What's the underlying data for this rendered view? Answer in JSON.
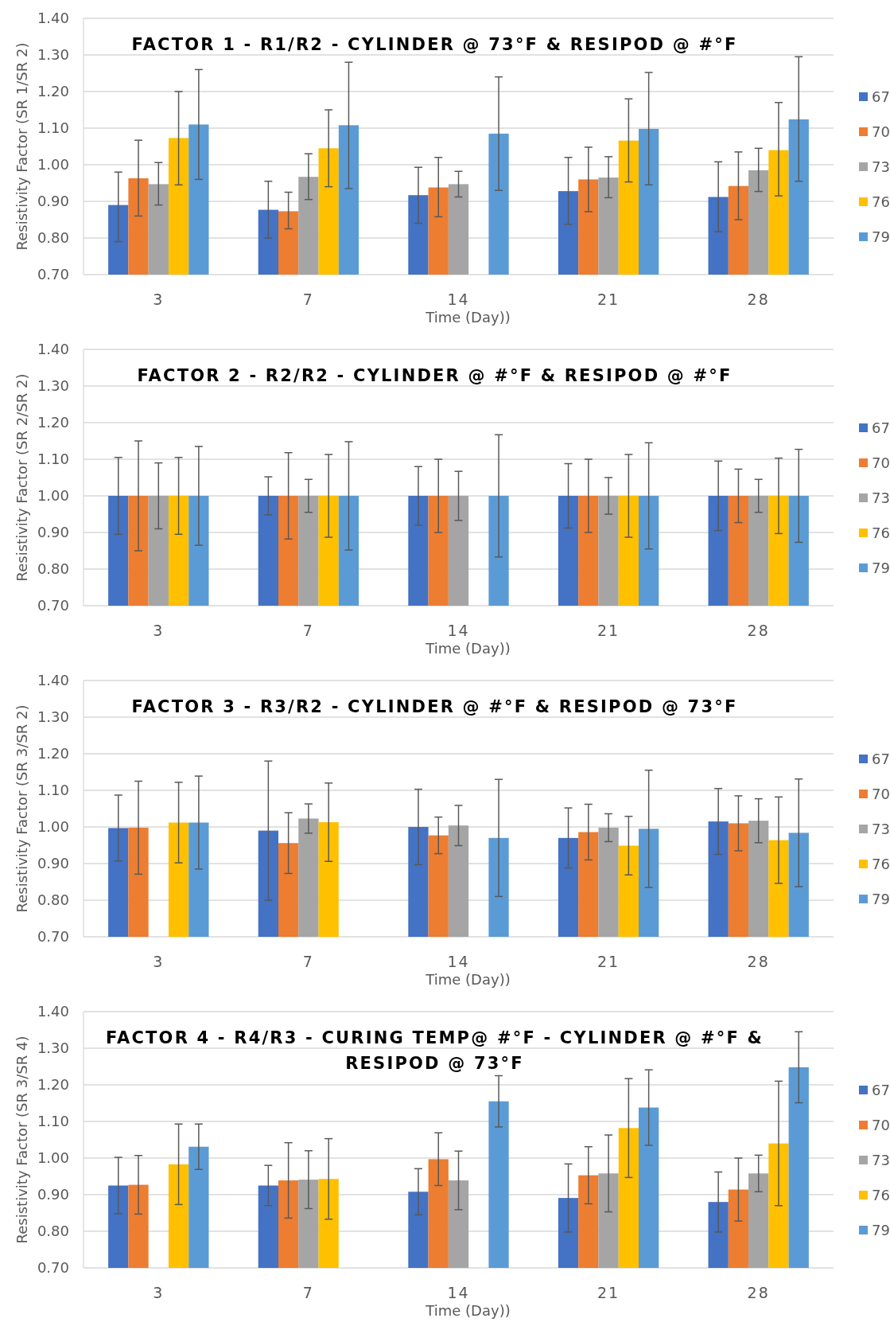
{
  "chart_data": [
    {
      "type": "bar",
      "title": "FACTOR 1 - R1/R2 -  CYLINDER @ 73°F & RESIPOD @ #°F",
      "xlabel": "Time (Day))",
      "ylabel": "Resistivity Factor (SR 1/SR 2)",
      "categories": [
        "3",
        "7",
        "14",
        "21",
        "28"
      ],
      "ylim": [
        0.7,
        1.4
      ],
      "yticks": [
        {
          "value": 0.7,
          "label": "0.70"
        },
        {
          "value": 0.8,
          "label": "0.80"
        },
        {
          "value": 0.9,
          "label": "0.90"
        },
        {
          "value": 1.0,
          "label": "1.00"
        },
        {
          "value": 1.1,
          "label": "1.10"
        },
        {
          "value": 1.2,
          "label": "1.20"
        },
        {
          "value": 1.3,
          "label": "1.30"
        },
        {
          "value": 1.4,
          "label": "1.40"
        }
      ],
      "grid": "y",
      "legend": "right",
      "series": [
        {
          "name": "67",
          "color": "#4472c4",
          "values": [
            0.89,
            0.877,
            0.917,
            0.928,
            0.912
          ],
          "errors": [
            [
              0.79,
              0.98
            ],
            [
              0.8,
              0.955
            ],
            [
              0.84,
              0.993
            ],
            [
              0.837,
              1.02
            ],
            [
              0.817,
              1.008
            ]
          ]
        },
        {
          "name": "70",
          "color": "#ed7d31",
          "values": [
            0.963,
            0.873,
            0.938,
            0.96,
            0.942
          ],
          "errors": [
            [
              0.86,
              1.067
            ],
            [
              0.825,
              0.925
            ],
            [
              0.858,
              1.02
            ],
            [
              0.872,
              1.048
            ],
            [
              0.85,
              1.035
            ]
          ]
        },
        {
          "name": "73",
          "color": "#a5a5a5",
          "values": [
            0.947,
            0.967,
            0.947,
            0.965,
            0.985
          ],
          "errors": [
            [
              0.89,
              1.006
            ],
            [
              0.905,
              1.03
            ],
            [
              0.912,
              0.982
            ],
            [
              0.91,
              1.022
            ],
            [
              0.927,
              1.045
            ]
          ]
        },
        {
          "name": "76",
          "color": "#ffc000",
          "values": [
            1.073,
            1.045,
            null,
            1.066,
            1.04
          ],
          "errors": [
            [
              0.945,
              1.2
            ],
            [
              0.94,
              1.15
            ],
            null,
            [
              0.953,
              1.18
            ],
            [
              0.915,
              1.17
            ]
          ]
        },
        {
          "name": "79",
          "color": "#5b9bd5",
          "values": [
            1.11,
            1.108,
            1.085,
            1.098,
            1.124
          ],
          "errors": [
            [
              0.96,
              1.26
            ],
            [
              0.935,
              1.28
            ],
            [
              0.93,
              1.24
            ],
            [
              0.945,
              1.252
            ],
            [
              0.955,
              1.295
            ]
          ]
        }
      ]
    },
    {
      "type": "bar",
      "title": "FACTOR 2 - R2/R2 -  CYLINDER @ #°F & RESIPOD @ #°F",
      "xlabel": "Time (Day))",
      "ylabel": "Resistivity Factor (SR 2/SR 2)",
      "categories": [
        "3",
        "7",
        "14",
        "21",
        "28"
      ],
      "ylim": [
        0.7,
        1.4
      ],
      "yticks": [
        {
          "value": 0.7,
          "label": "0.70"
        },
        {
          "value": 0.8,
          "label": "0.80"
        },
        {
          "value": 0.9,
          "label": "0.90"
        },
        {
          "value": 1.0,
          "label": "1.00"
        },
        {
          "value": 1.1,
          "label": "1.10"
        },
        {
          "value": 1.2,
          "label": "1.20"
        },
        {
          "value": 1.3,
          "label": "1.30"
        },
        {
          "value": 1.4,
          "label": "1.40"
        }
      ],
      "grid": "y",
      "legend": "right",
      "series": [
        {
          "name": "67",
          "color": "#4472c4",
          "values": [
            1.0,
            1.0,
            1.0,
            1.0,
            1.0
          ],
          "errors": [
            0.105,
            0.052,
            0.08,
            0.088,
            0.095
          ]
        },
        {
          "name": "70",
          "color": "#ed7d31",
          "values": [
            1.0,
            1.0,
            1.0,
            1.0,
            1.0
          ],
          "errors": [
            0.15,
            0.118,
            0.1,
            0.1,
            0.073
          ]
        },
        {
          "name": "73",
          "color": "#a5a5a5",
          "values": [
            1.0,
            1.0,
            1.0,
            1.0,
            1.0
          ],
          "errors": [
            0.09,
            0.045,
            0.067,
            0.05,
            0.045
          ]
        },
        {
          "name": "76",
          "color": "#ffc000",
          "values": [
            1.0,
            1.0,
            null,
            1.0,
            1.0
          ],
          "errors": [
            0.105,
            0.113,
            null,
            0.113,
            0.103
          ]
        },
        {
          "name": "79",
          "color": "#5b9bd5",
          "values": [
            1.0,
            1.0,
            1.0,
            1.0,
            1.0
          ],
          "errors": [
            0.135,
            0.148,
            0.167,
            0.145,
            0.127
          ]
        }
      ]
    },
    {
      "type": "bar",
      "title": "FACTOR 3 - R3/R2 -  CYLINDER @ #°F & RESIPOD @ 73°F",
      "xlabel": "Time (Day))",
      "ylabel": "Resistivity Factor (SR 3/SR 2)",
      "categories": [
        "3",
        "7",
        "14",
        "21",
        "28"
      ],
      "ylim": [
        0.7,
        1.4
      ],
      "yticks": [
        {
          "value": 0.7,
          "label": "0.70"
        },
        {
          "value": 0.8,
          "label": "0.80"
        },
        {
          "value": 0.9,
          "label": "0.90"
        },
        {
          "value": 1.0,
          "label": "1.00"
        },
        {
          "value": 1.1,
          "label": "1.10"
        },
        {
          "value": 1.2,
          "label": "1.20"
        },
        {
          "value": 1.3,
          "label": "1.30"
        },
        {
          "value": 1.4,
          "label": "1.40"
        }
      ],
      "grid": "y",
      "legend": "right",
      "series": [
        {
          "name": "67",
          "color": "#4472c4",
          "values": [
            0.997,
            0.99,
            1.0,
            0.97,
            1.015
          ],
          "errors": [
            0.09,
            0.19,
            0.103,
            0.082,
            0.09
          ]
        },
        {
          "name": "70",
          "color": "#ed7d31",
          "values": [
            0.998,
            0.956,
            0.977,
            0.986,
            1.01
          ],
          "errors": [
            0.127,
            0.083,
            0.05,
            0.076,
            0.075
          ]
        },
        {
          "name": "73",
          "color": "#a5a5a5",
          "values": [
            null,
            1.023,
            1.004,
            0.998,
            1.017
          ],
          "errors": [
            null,
            0.04,
            0.055,
            0.038,
            0.06
          ]
        },
        {
          "name": "76",
          "color": "#ffc000",
          "values": [
            1.012,
            1.013,
            null,
            0.949,
            0.964
          ],
          "errors": [
            0.11,
            0.107,
            null,
            0.08,
            0.118
          ]
        },
        {
          "name": "79",
          "color": "#5b9bd5",
          "values": [
            1.012,
            null,
            0.97,
            0.995,
            0.984
          ],
          "errors": [
            0.127,
            null,
            0.16,
            0.16,
            0.147
          ]
        }
      ]
    },
    {
      "type": "bar",
      "title": "FACTOR 4 - R4/R3 -  CURING TEMP@ #°F - CYLINDER @ #°F & RESIPOD @ 73°F",
      "xlabel": "Time (Day))",
      "ylabel": "Resistivity Factor (SR 3/SR 4)",
      "categories": [
        "3",
        "7",
        "14",
        "21",
        "28"
      ],
      "ylim": [
        0.7,
        1.4
      ],
      "yticks": [
        {
          "value": 0.7,
          "label": "0.70"
        },
        {
          "value": 0.8,
          "label": "0.80"
        },
        {
          "value": 0.9,
          "label": "0.90"
        },
        {
          "value": 1.0,
          "label": "1.00"
        },
        {
          "value": 1.1,
          "label": "1.10"
        },
        {
          "value": 1.2,
          "label": "1.20"
        },
        {
          "value": 1.3,
          "label": "1.30"
        },
        {
          "value": 1.4,
          "label": "1.40"
        }
      ],
      "grid": "y",
      "legend": "right",
      "series": [
        {
          "name": "67",
          "color": "#4472c4",
          "values": [
            0.925,
            0.925,
            0.908,
            0.891,
            0.88
          ],
          "errors": [
            0.077,
            0.055,
            0.063,
            0.093,
            0.082
          ]
        },
        {
          "name": "70",
          "color": "#ed7d31",
          "values": [
            0.927,
            0.939,
            0.997,
            0.953,
            0.914
          ],
          "errors": [
            0.08,
            0.103,
            0.072,
            0.078,
            0.086
          ]
        },
        {
          "name": "73",
          "color": "#a5a5a5",
          "values": [
            null,
            0.941,
            0.939,
            0.958,
            0.958
          ],
          "errors": [
            null,
            0.079,
            0.08,
            0.105,
            0.05
          ]
        },
        {
          "name": "76",
          "color": "#ffc000",
          "values": [
            0.983,
            0.943,
            null,
            1.082,
            1.04
          ],
          "errors": [
            0.11,
            0.11,
            null,
            0.135,
            0.17
          ]
        },
        {
          "name": "79",
          "color": "#5b9bd5",
          "values": [
            1.031,
            null,
            1.155,
            1.138,
            1.248
          ],
          "errors": [
            0.062,
            null,
            0.07,
            0.103,
            0.097
          ]
        }
      ]
    }
  ]
}
